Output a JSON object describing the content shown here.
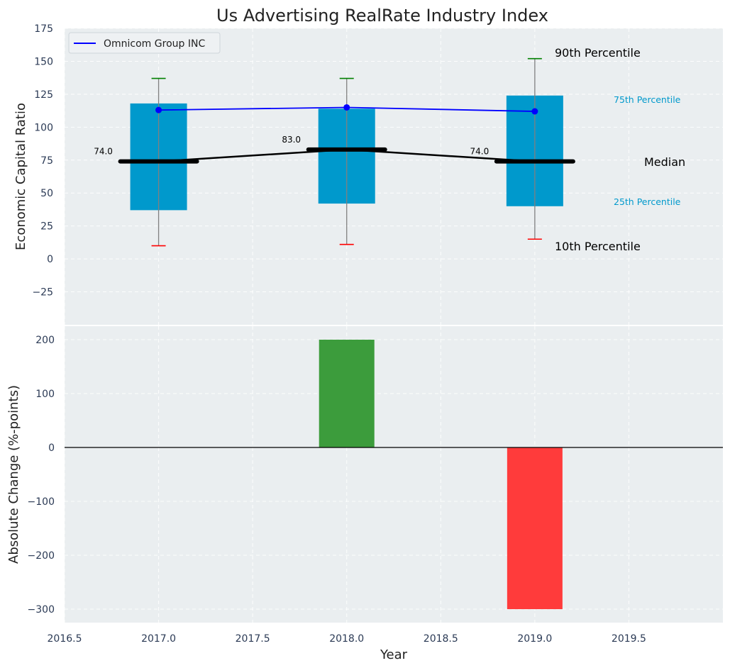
{
  "chart_data": [
    {
      "type": "box",
      "title": "Us Advertising RealRate Industry Index",
      "xlabel": "",
      "ylabel": "Economic Capital Ratio",
      "ylim": [
        -50,
        175
      ],
      "yticks": [
        -25,
        0,
        25,
        50,
        75,
        100,
        125,
        150,
        175
      ],
      "x": [
        2017.0,
        2018.0,
        2019.0
      ],
      "p10": [
        10,
        11,
        15
      ],
      "p25": [
        37,
        42,
        40
      ],
      "median": [
        74,
        83,
        74
      ],
      "median_labels": [
        "74.0",
        "83.0",
        "74.0"
      ],
      "p75": [
        118,
        114,
        124
      ],
      "p90": [
        137,
        137,
        152
      ],
      "series": [
        {
          "name": "Omnicom Group INC",
          "values": [
            113,
            115,
            112
          ],
          "color": "#0000ff"
        }
      ],
      "legend": "upper-left",
      "grid": true,
      "annotations": {
        "p90": "90th Percentile",
        "p75": "75th Percentile",
        "median": "Median",
        "p25": "25th Percentile",
        "p10": "10th Percentile"
      },
      "colors": {
        "box": "#0099cc",
        "median": "#000000",
        "whisker_top": "#008000",
        "whisker_bottom": "#ff0000",
        "whisker": "#808080",
        "background": "#eaeef0"
      }
    },
    {
      "type": "bar",
      "xlabel": "Year",
      "ylabel": "Absolute Change (%-points)",
      "ylim": [
        -325,
        225
      ],
      "yticks": [
        -300,
        -200,
        -100,
        0,
        100,
        200
      ],
      "xlim": [
        2016.5,
        2020.0
      ],
      "xticks": [
        "2016.5",
        "2017.0",
        "2017.5",
        "2018.0",
        "2018.5",
        "2019.0",
        "2019.5"
      ],
      "x": [
        2018.0,
        2019.0
      ],
      "values": [
        200,
        -300
      ],
      "colors": {
        "positive": "#3c9c3c",
        "negative": "#ff3b3b",
        "background": "#eaeef0"
      },
      "grid": true
    }
  ]
}
